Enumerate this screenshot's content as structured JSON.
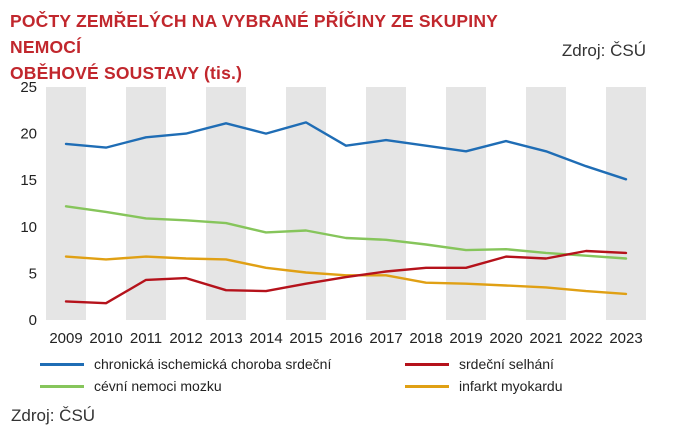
{
  "header": {
    "title_line1": "POČTY ZEMŘELÝCH NA VYBRANÉ PŘÍČINY ZE SKUPINY NEMOCÍ",
    "title_line2": "OBĚHOVÉ SOUSTAVY (tis.)",
    "source_top": "Zdroj: ČSÚ"
  },
  "footer": {
    "source_bottom": "Zdroj: ČSÚ"
  },
  "colors": {
    "title": "#c1272d",
    "band": "#e5e5e5"
  },
  "chart_data": {
    "type": "line",
    "title": "POČTY ZEMŘELÝCH NA VYBRANÉ PŘÍČINY ZE SKUPINY NEMOCÍ OBĚHOVÉ SOUSTAVY (tis.)",
    "x": [
      "2009",
      "2010",
      "2011",
      "2012",
      "2013",
      "2014",
      "2015",
      "2016",
      "2017",
      "2018",
      "2019",
      "2020",
      "2021",
      "2022",
      "2023"
    ],
    "yticks": [
      "0",
      "5",
      "10",
      "15",
      "20",
      "25"
    ],
    "ylim": [
      0,
      25
    ],
    "grid": false,
    "alternating_vertical_bands": true,
    "legend_position": "bottom",
    "series": [
      {
        "name": "chronická ischemická choroba srdeční",
        "color": "#1f6db5",
        "values": [
          18.9,
          18.5,
          19.6,
          20.0,
          21.1,
          20.0,
          21.2,
          18.7,
          19.3,
          18.7,
          18.1,
          19.2,
          18.1,
          16.5,
          15.1
        ]
      },
      {
        "name": "srdeční selhání",
        "color": "#b5121b",
        "values": [
          2.0,
          1.8,
          4.3,
          4.5,
          3.2,
          3.1,
          3.9,
          4.6,
          5.2,
          5.6,
          5.6,
          6.8,
          6.6,
          7.4,
          7.2
        ]
      },
      {
        "name": "cévní nemoci mozku",
        "color": "#86c55b",
        "values": [
          12.2,
          11.6,
          10.9,
          10.7,
          10.4,
          9.4,
          9.6,
          8.8,
          8.6,
          8.1,
          7.5,
          7.6,
          7.2,
          6.9,
          6.6
        ]
      },
      {
        "name": "infarkt myokardu",
        "color": "#e0a014",
        "values": [
          6.8,
          6.5,
          6.8,
          6.6,
          6.5,
          5.6,
          5.1,
          4.8,
          4.8,
          4.0,
          3.9,
          3.7,
          3.5,
          3.1,
          2.8
        ]
      }
    ]
  }
}
